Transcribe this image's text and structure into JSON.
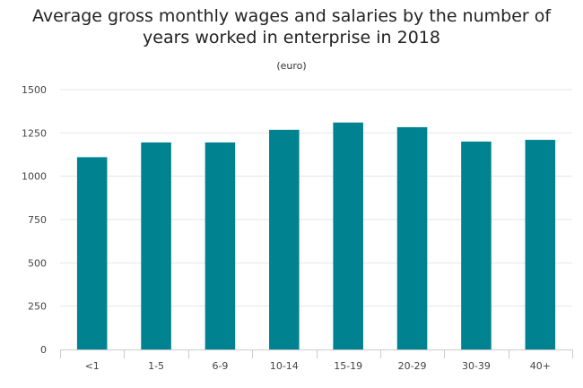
{
  "chart_data": {
    "type": "bar",
    "title_line1": "Average gross monthly wages and salaries by the number of",
    "title_line2": "years worked in enterprise in 2018",
    "subtitle": "(euro)",
    "categories": [
      "<1",
      "1-5",
      "6-9",
      "10-14",
      "15-19",
      "20-29",
      "30-39",
      "40+"
    ],
    "values": [
      1110,
      1195,
      1195,
      1268,
      1310,
      1283,
      1200,
      1210
    ],
    "ylim": [
      0,
      1500
    ],
    "yticks": [
      0,
      250,
      500,
      750,
      1000,
      1250,
      1500
    ],
    "ytick_labels": [
      "0",
      "250",
      "500",
      "750",
      "1000",
      "1250",
      "1500"
    ],
    "grid": true,
    "bar_color": "#008291",
    "grid_color": "#e6e6e6",
    "axis_color": "#cccccc"
  }
}
